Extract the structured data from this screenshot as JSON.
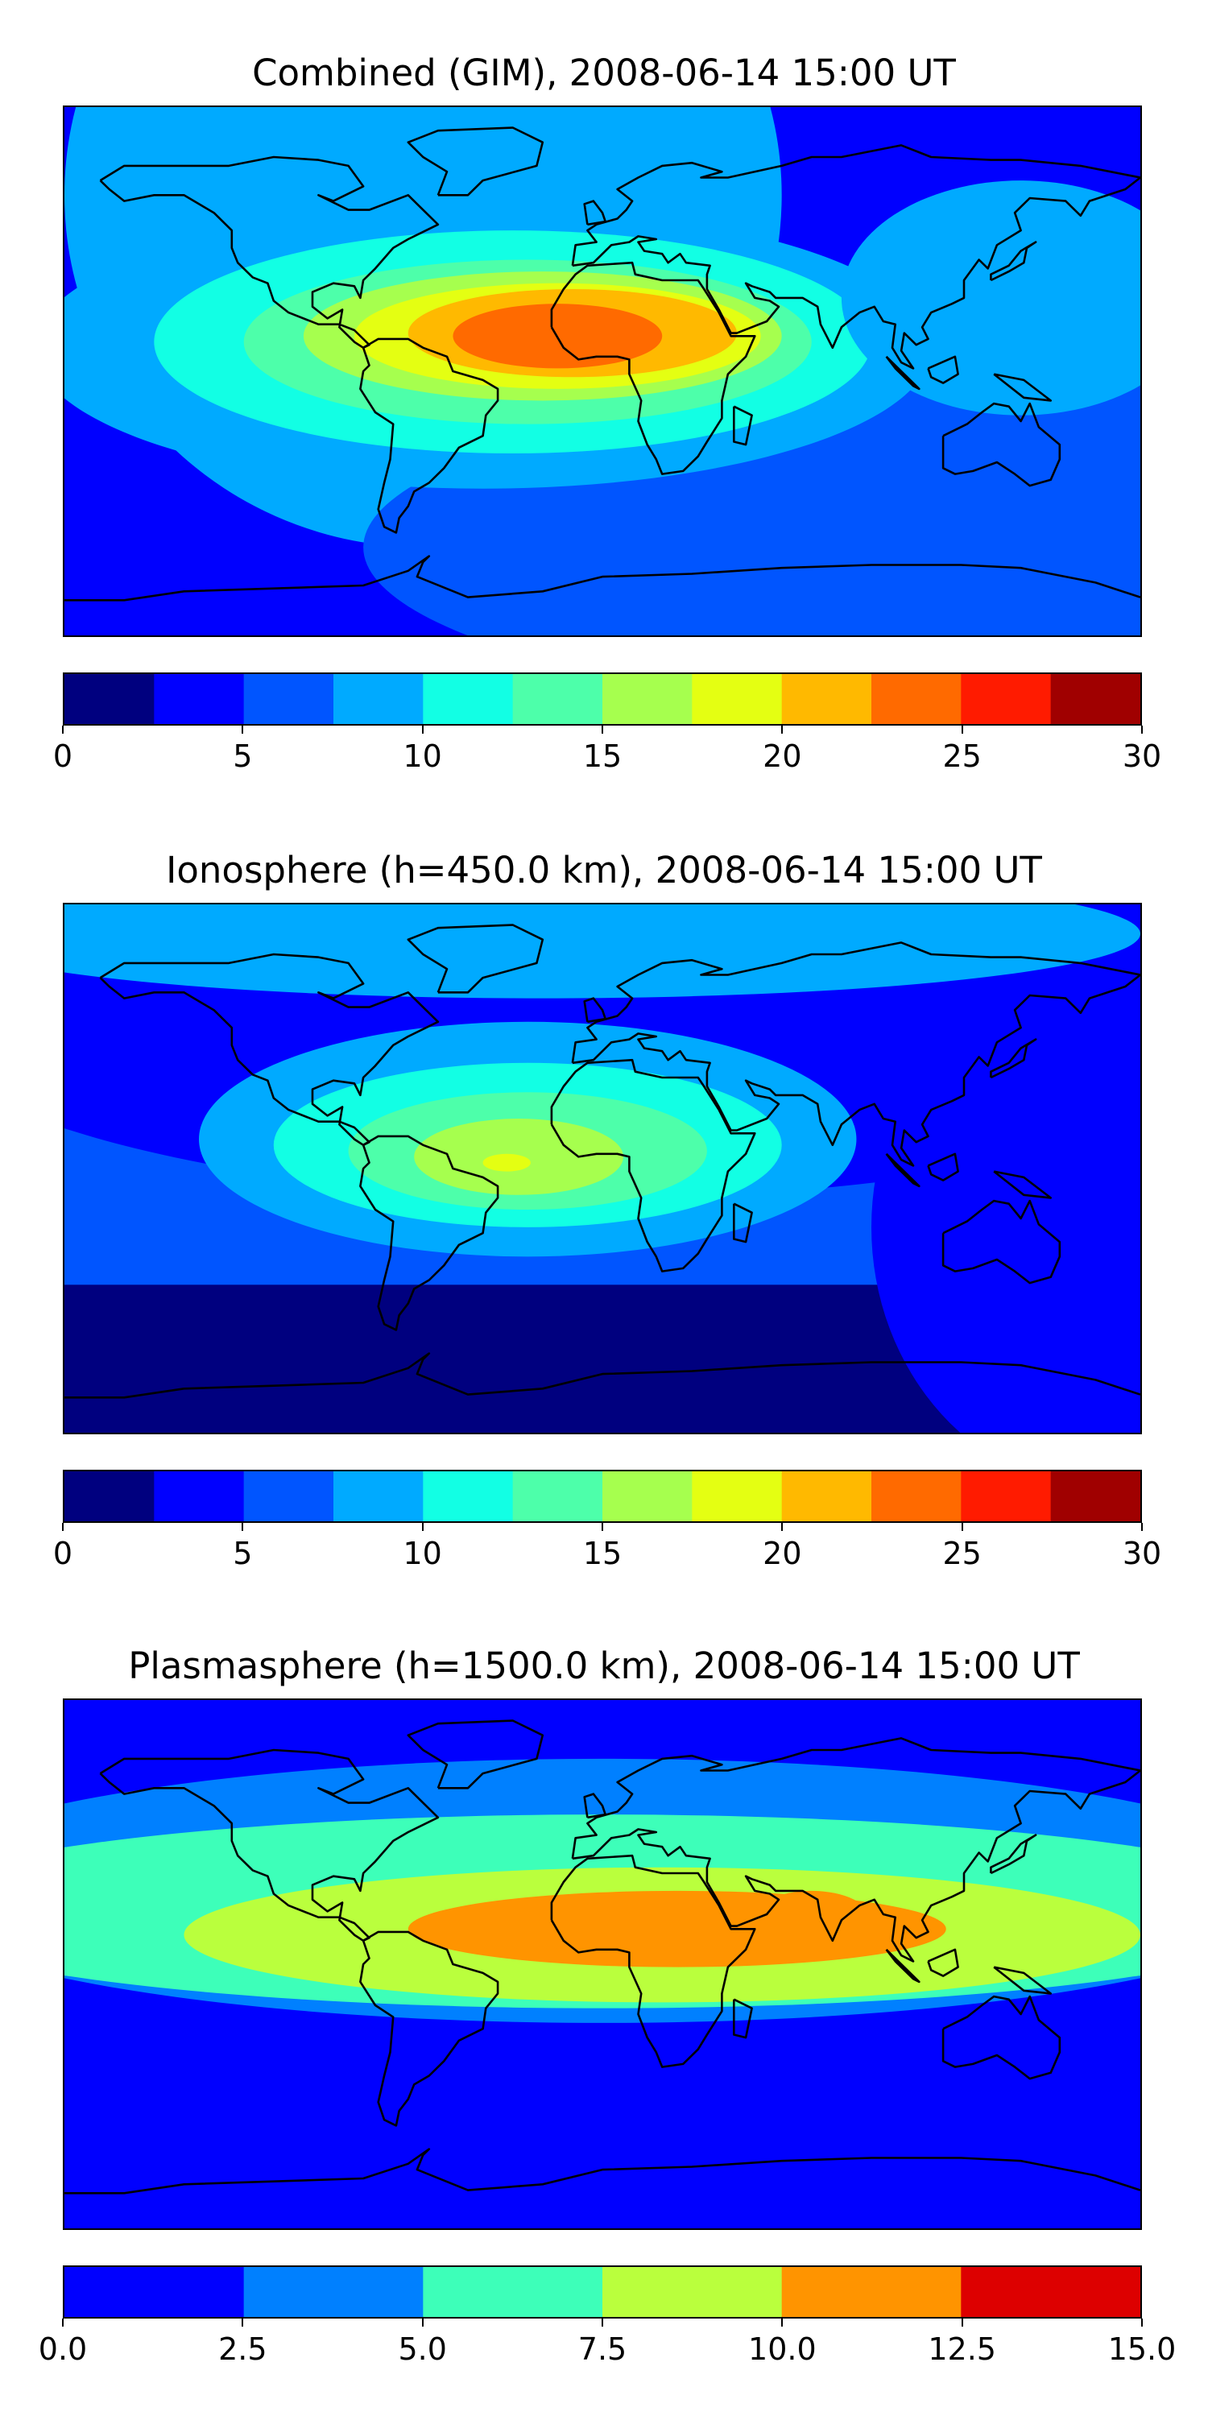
{
  "chart_data": [
    {
      "type": "heatmap",
      "title": "Combined (GIM), 2008-06-14 15:00 UT",
      "colorbar": {
        "levels": [
          0,
          2.5,
          5,
          7.5,
          10,
          12.5,
          15,
          17.5,
          20,
          22.5,
          25,
          27.5,
          30
        ],
        "colors": [
          "#00007f",
          "#0000ff",
          "#0055ff",
          "#00aaff",
          "#12ffe4",
          "#4dffaa",
          "#a6ff4e",
          "#e4ff12",
          "#ffb900",
          "#ff6a00",
          "#ff1b00",
          "#a00000"
        ],
        "ticks": [
          0,
          5,
          10,
          15,
          20,
          25,
          30
        ],
        "tick_labels": [
          "0",
          "5",
          "10",
          "15",
          "20",
          "25",
          "30"
        ]
      },
      "field_description_levels": {
        "background_high_latitude": 5,
        "equatorial_peak": 25,
        "peak_region": "South America / Atlantic / Africa"
      }
    },
    {
      "type": "heatmap",
      "title": "Ionosphere  (h=450.0 km), 2008-06-14 15:00 UT",
      "colorbar": {
        "levels": [
          0,
          2.5,
          5,
          7.5,
          10,
          12.5,
          15,
          17.5,
          20,
          22.5,
          25,
          27.5,
          30
        ],
        "colors": [
          "#00007f",
          "#0000ff",
          "#0055ff",
          "#00aaff",
          "#12ffe4",
          "#4dffaa",
          "#a6ff4e",
          "#e4ff12",
          "#ffb900",
          "#ff6a00",
          "#ff1b00",
          "#a00000"
        ],
        "ticks": [
          0,
          5,
          10,
          15,
          20,
          25,
          30
        ],
        "tick_labels": [
          "0",
          "5",
          "10",
          "15",
          "20",
          "25",
          "30"
        ]
      },
      "field_description_levels": {
        "background_high_latitude": 5,
        "equatorial_peak": 17.5,
        "peak_region": "South America / Atlantic / Africa"
      }
    },
    {
      "type": "heatmap",
      "title": "Plasmasphere (h=1500.0 km), 2008-06-14 15:00 UT",
      "colorbar": {
        "levels": [
          0,
          2.5,
          5,
          7.5,
          10,
          12.5,
          15
        ],
        "colors": [
          "#0000ff",
          "#0080ff",
          "#3dffb9",
          "#baff3d",
          "#ff9400",
          "#dd0000"
        ],
        "ticks": [
          0,
          2.5,
          5,
          7.5,
          10,
          12.5,
          15
        ],
        "tick_labels": [
          "0.0",
          "2.5",
          "5.0",
          "7.5",
          "10.0",
          "12.5",
          "15.0"
        ]
      },
      "field_description_levels": {
        "background_high_latitude": 2.5,
        "equatorial_peak": 12.5,
        "peak_region": "Africa / Indian Ocean"
      }
    }
  ]
}
